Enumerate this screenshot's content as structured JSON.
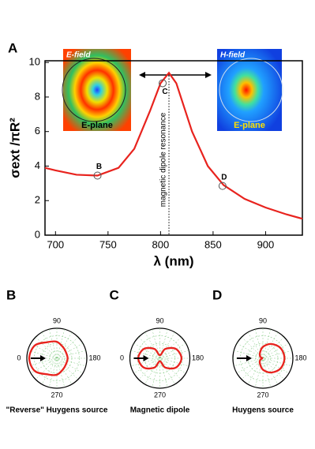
{
  "chart_data": [
    {
      "type": "line",
      "panel": "A",
      "x_label": "λ (nm)",
      "y_label": "σext /πR²",
      "x": [
        690,
        700,
        720,
        740,
        760,
        775,
        790,
        800,
        808,
        815,
        830,
        845,
        860,
        880,
        900,
        920,
        935
      ],
      "series": [
        {
          "color": "#e8231e",
          "values": [
            3.9,
            3.75,
            3.5,
            3.45,
            3.9,
            5,
            7.2,
            8.8,
            9.4,
            8.8,
            6,
            4,
            2.9,
            2.1,
            1.6,
            1.2,
            0.95
          ]
        }
      ],
      "xlim": [
        690,
        935
      ],
      "ylim": [
        0,
        10.1
      ],
      "xticks": [
        700,
        750,
        800,
        850,
        900
      ],
      "yticks": [
        0,
        2,
        4,
        6,
        8,
        10
      ],
      "points": [
        {
          "label": "B",
          "x": 740,
          "y": 3.45
        },
        {
          "label": "C",
          "x": 802,
          "y": 8.8
        },
        {
          "label": "D",
          "x": 859,
          "y": 2.85
        }
      ],
      "resonance": {
        "x": 808,
        "label": "magnetic dipole resonance"
      },
      "insets": [
        {
          "title": "E-field",
          "caption": "E-plane"
        },
        {
          "title": "H-field",
          "caption": "E-plane"
        }
      ]
    },
    {
      "type": "polar",
      "panel": "B",
      "caption": "\"Reverse\" Huygens source",
      "color": "#e8231e",
      "rlim": [
        0,
        1
      ],
      "theta": [
        0,
        30,
        60,
        90,
        120,
        150,
        180,
        210,
        240,
        270,
        300,
        330
      ],
      "values": [
        0.92,
        0.85,
        0.62,
        0.55,
        0.42,
        0.36,
        0.36,
        0.36,
        0.42,
        0.55,
        0.62,
        0.85
      ],
      "angle_ticks": [
        0,
        90,
        180,
        270
      ]
    },
    {
      "type": "polar",
      "panel": "C",
      "caption": "Magnetic dipole",
      "color": "#e8231e",
      "rlim": [
        0,
        1
      ],
      "theta": [
        0,
        30,
        60,
        90,
        120,
        150,
        180,
        210,
        240,
        270,
        300,
        330
      ],
      "values": [
        0.72,
        0.62,
        0.36,
        0.1,
        0.36,
        0.62,
        0.72,
        0.62,
        0.36,
        0.1,
        0.36,
        0.62
      ],
      "angle_ticks": [
        0,
        90,
        180,
        270
      ]
    },
    {
      "type": "polar",
      "panel": "D",
      "caption": "Huygens source",
      "color": "#e8231e",
      "rlim": [
        0,
        1
      ],
      "theta": [
        0,
        30,
        60,
        90,
        120,
        150,
        180,
        210,
        240,
        270,
        300,
        330
      ],
      "values": [
        0.02,
        0.1,
        0.2,
        0.38,
        0.55,
        0.68,
        0.72,
        0.68,
        0.55,
        0.38,
        0.2,
        0.1
      ],
      "angle_ticks": [
        90,
        180,
        270
      ]
    }
  ]
}
